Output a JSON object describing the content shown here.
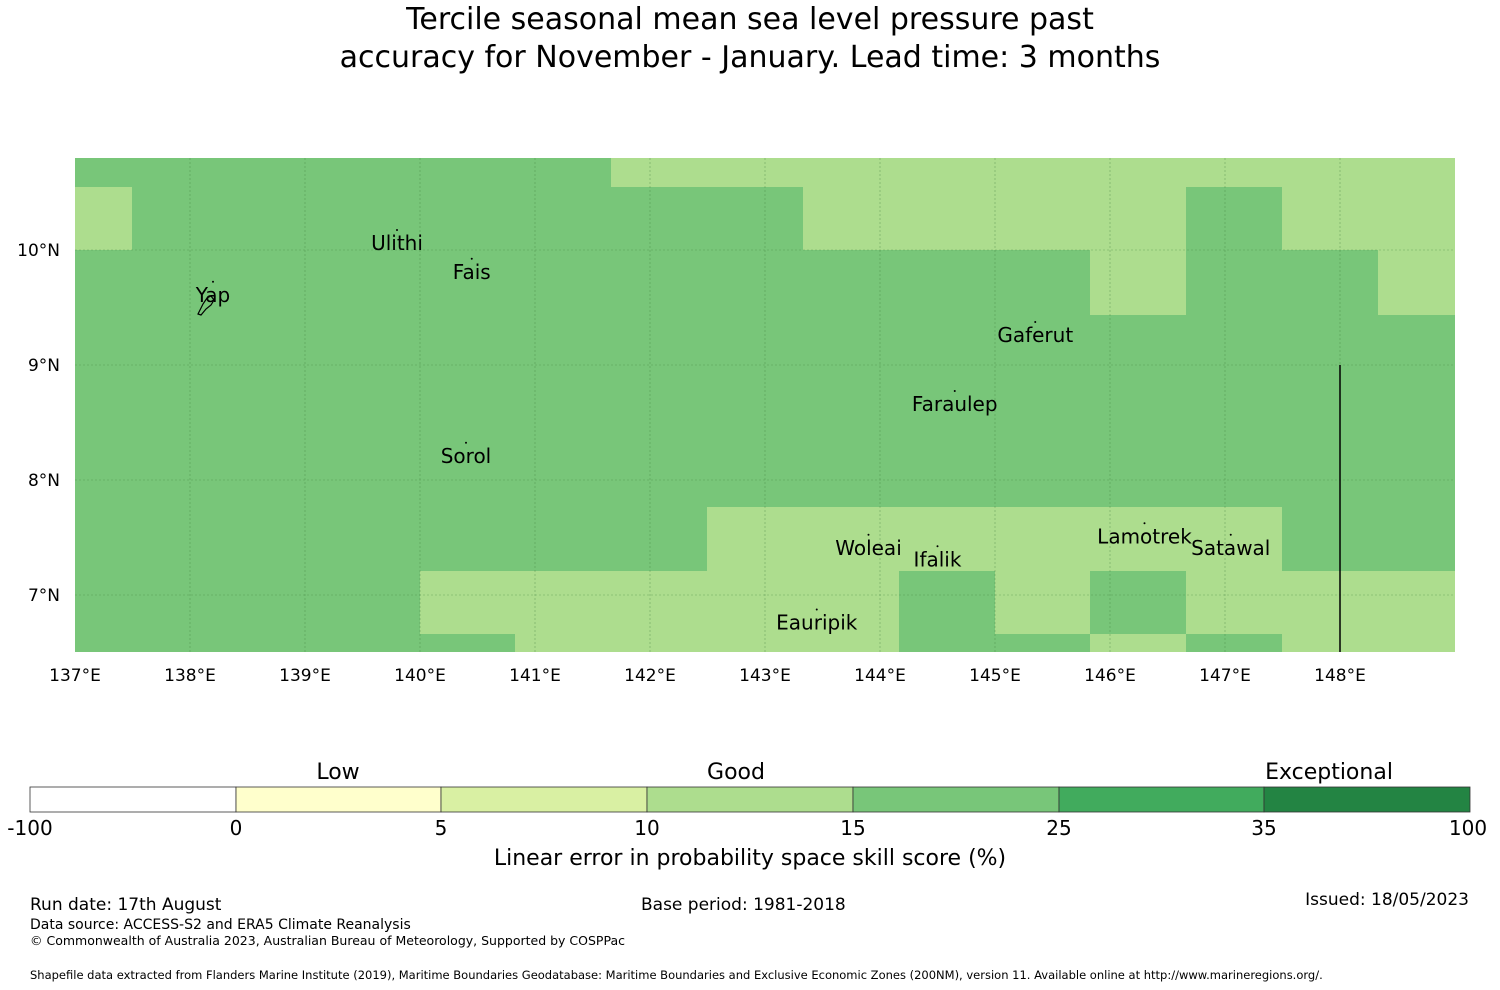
{
  "title": {
    "line1": "Tercile seasonal mean sea level pressure past",
    "line2": "accuracy for November - January. Lead time: 3 months"
  },
  "map": {
    "lon_range": [
      137,
      149
    ],
    "lat_range": [
      6.5,
      10.8
    ],
    "lon_ticks": [
      "137°E",
      "138°E",
      "139°E",
      "140°E",
      "141°E",
      "142°E",
      "143°E",
      "144°E",
      "145°E",
      "146°E",
      "147°E",
      "148°E"
    ],
    "lat_ticks": [
      "10°N",
      "9°N",
      "8°N",
      "7°N"
    ],
    "colors": {
      "good_15_25": "#78c679",
      "good_10_15": "#addd8e"
    },
    "places": [
      {
        "name": "Ulithi",
        "lon": 139.8,
        "lat": 10.0
      },
      {
        "name": "Fais",
        "lon": 140.45,
        "lat": 9.75
      },
      {
        "name": "Yap",
        "lon": 138.2,
        "lat": 9.55
      },
      {
        "name": "Gaferut",
        "lon": 145.35,
        "lat": 9.2
      },
      {
        "name": "Faraulep",
        "lon": 144.65,
        "lat": 8.6
      },
      {
        "name": "Sorol",
        "lon": 140.4,
        "lat": 8.15
      },
      {
        "name": "Woleai",
        "lon": 143.9,
        "lat": 7.35
      },
      {
        "name": "Ifalik",
        "lon": 144.5,
        "lat": 7.25
      },
      {
        "name": "Lamotrek",
        "lon": 146.3,
        "lat": 7.45
      },
      {
        "name": "Satawal",
        "lon": 147.05,
        "lat": 7.35
      },
      {
        "name": "Eauripik",
        "lon": 143.45,
        "lat": 6.7
      }
    ]
  },
  "colorbar": {
    "categories": [
      "Low",
      "Good",
      "Exceptional"
    ],
    "ticks": [
      "-100",
      "0",
      "5",
      "10",
      "15",
      "25",
      "35",
      "100"
    ],
    "colors": [
      "#ffffff",
      "#ffffcc",
      "#d9f0a3",
      "#addd8e",
      "#78c679",
      "#41ab5d",
      "#238443"
    ],
    "label": "Linear error in probability space skill score (%)"
  },
  "footer": {
    "run_date": "Run date: 17th August",
    "base_period": "Base period: 1981-2018",
    "issued": "Issued: 18/05/2023",
    "data_source": "Data source: ACCESS-S2 and ERA5 Climate Reanalysis",
    "copyright": "© Commonwealth of Australia 2023, Australian Bureau of Meteorology, Supported by COSPPac",
    "shapefile": "Shapefile data extracted from Flanders Marine Institute (2019), Maritime Boundaries Geodatabase: Maritime Boundaries and Exclusive Economic Zones (200NM), version 11. Available online at http://www.marineregions.org/."
  }
}
